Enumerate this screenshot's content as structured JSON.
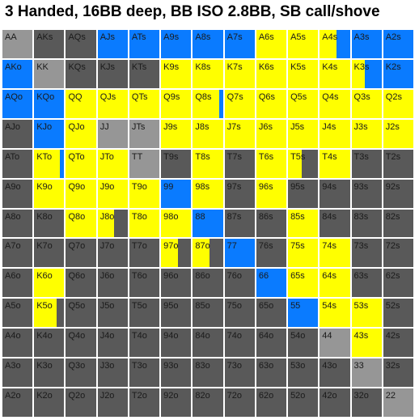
{
  "title": "3 Handed, 16BB deep, BB ISO 2.8BB, SB call/shove",
  "colors": {
    "yellow": "#ffff00",
    "blue": "#0a7bff",
    "dark": "#595959",
    "light": "#969696"
  },
  "grid": {
    "rows": [
      [
        {
          "label": "AA",
          "fill": [
            "light"
          ]
        },
        {
          "label": "AKs",
          "fill": [
            "dark"
          ]
        },
        {
          "label": "AQs",
          "fill": [
            "dark"
          ]
        },
        {
          "label": "AJs",
          "fill": [
            "blue"
          ]
        },
        {
          "label": "ATs",
          "fill": [
            "blue"
          ]
        },
        {
          "label": "A9s",
          "fill": [
            "blue"
          ]
        },
        {
          "label": "A8s",
          "fill": [
            "blue"
          ]
        },
        {
          "label": "A7s",
          "fill": [
            "blue"
          ]
        },
        {
          "label": "A6s",
          "fill": [
            "yellow"
          ]
        },
        {
          "label": "A5s",
          "fill": [
            "yellow"
          ]
        },
        {
          "label": "A4s",
          "fill": [
            "yellow",
            "blue"
          ],
          "split": [
            0.55,
            0.45
          ]
        },
        {
          "label": "A3s",
          "fill": [
            "blue"
          ]
        },
        {
          "label": "A2s",
          "fill": [
            "blue"
          ]
        }
      ],
      [
        {
          "label": "AKo",
          "fill": [
            "blue"
          ]
        },
        {
          "label": "KK",
          "fill": [
            "light"
          ]
        },
        {
          "label": "KQs",
          "fill": [
            "dark"
          ]
        },
        {
          "label": "KJs",
          "fill": [
            "dark"
          ]
        },
        {
          "label": "KTs",
          "fill": [
            "dark"
          ]
        },
        {
          "label": "K9s",
          "fill": [
            "yellow"
          ]
        },
        {
          "label": "K8s",
          "fill": [
            "yellow"
          ]
        },
        {
          "label": "K7s",
          "fill": [
            "yellow"
          ]
        },
        {
          "label": "K6s",
          "fill": [
            "yellow"
          ]
        },
        {
          "label": "K5s",
          "fill": [
            "yellow"
          ]
        },
        {
          "label": "K4s",
          "fill": [
            "yellow"
          ]
        },
        {
          "label": "K3s",
          "fill": [
            "yellow",
            "blue"
          ],
          "split": [
            0.45,
            0.55
          ]
        },
        {
          "label": "K2s",
          "fill": [
            "blue"
          ]
        }
      ],
      [
        {
          "label": "AQo",
          "fill": [
            "blue"
          ]
        },
        {
          "label": "KQo",
          "fill": [
            "blue"
          ]
        },
        {
          "label": "QQ",
          "fill": [
            "yellow"
          ]
        },
        {
          "label": "QJs",
          "fill": [
            "yellow"
          ]
        },
        {
          "label": "QTs",
          "fill": [
            "yellow"
          ]
        },
        {
          "label": "Q9s",
          "fill": [
            "yellow"
          ]
        },
        {
          "label": "Q8s",
          "fill": [
            "yellow",
            "blue"
          ],
          "split": [
            0.88,
            0.12
          ]
        },
        {
          "label": "Q7s",
          "fill": [
            "yellow"
          ]
        },
        {
          "label": "Q6s",
          "fill": [
            "yellow"
          ]
        },
        {
          "label": "Q5s",
          "fill": [
            "yellow"
          ]
        },
        {
          "label": "Q4s",
          "fill": [
            "yellow"
          ]
        },
        {
          "label": "Q3s",
          "fill": [
            "yellow"
          ]
        },
        {
          "label": "Q2s",
          "fill": [
            "yellow"
          ]
        }
      ],
      [
        {
          "label": "AJo",
          "fill": [
            "dark"
          ]
        },
        {
          "label": "KJo",
          "fill": [
            "blue"
          ]
        },
        {
          "label": "QJo",
          "fill": [
            "yellow"
          ]
        },
        {
          "label": "JJ",
          "fill": [
            "light"
          ]
        },
        {
          "label": "JTs",
          "fill": [
            "light"
          ]
        },
        {
          "label": "J9s",
          "fill": [
            "yellow"
          ]
        },
        {
          "label": "J8s",
          "fill": [
            "yellow"
          ]
        },
        {
          "label": "J7s",
          "fill": [
            "yellow"
          ]
        },
        {
          "label": "J6s",
          "fill": [
            "yellow"
          ]
        },
        {
          "label": "J5s",
          "fill": [
            "yellow"
          ]
        },
        {
          "label": "J4s",
          "fill": [
            "yellow"
          ]
        },
        {
          "label": "J3s",
          "fill": [
            "yellow"
          ]
        },
        {
          "label": "J2s",
          "fill": [
            "yellow"
          ]
        }
      ],
      [
        {
          "label": "ATo",
          "fill": [
            "dark"
          ]
        },
        {
          "label": "KTo",
          "fill": [
            "yellow",
            "blue"
          ],
          "split": [
            0.85,
            0.15
          ]
        },
        {
          "label": "QTo",
          "fill": [
            "yellow"
          ]
        },
        {
          "label": "JTo",
          "fill": [
            "yellow"
          ]
        },
        {
          "label": "TT",
          "fill": [
            "light"
          ]
        },
        {
          "label": "T9s",
          "fill": [
            "dark"
          ]
        },
        {
          "label": "T8s",
          "fill": [
            "yellow"
          ]
        },
        {
          "label": "T7s",
          "fill": [
            "dark"
          ]
        },
        {
          "label": "T6s",
          "fill": [
            "yellow"
          ]
        },
        {
          "label": "T5s",
          "fill": [
            "yellow",
            "dark"
          ],
          "split": [
            0.45,
            0.55
          ]
        },
        {
          "label": "T4s",
          "fill": [
            "yellow"
          ]
        },
        {
          "label": "T3s",
          "fill": [
            "dark"
          ]
        },
        {
          "label": "T2s",
          "fill": [
            "dark"
          ]
        }
      ],
      [
        {
          "label": "A9o",
          "fill": [
            "dark"
          ]
        },
        {
          "label": "K9o",
          "fill": [
            "yellow"
          ]
        },
        {
          "label": "Q9o",
          "fill": [
            "yellow"
          ]
        },
        {
          "label": "J9o",
          "fill": [
            "yellow"
          ]
        },
        {
          "label": "T9o",
          "fill": [
            "yellow"
          ]
        },
        {
          "label": "99",
          "fill": [
            "blue"
          ]
        },
        {
          "label": "98s",
          "fill": [
            "yellow"
          ]
        },
        {
          "label": "97s",
          "fill": [
            "dark"
          ]
        },
        {
          "label": "96s",
          "fill": [
            "yellow"
          ]
        },
        {
          "label": "95s",
          "fill": [
            "dark"
          ]
        },
        {
          "label": "94s",
          "fill": [
            "dark"
          ]
        },
        {
          "label": "93s",
          "fill": [
            "dark"
          ]
        },
        {
          "label": "92s",
          "fill": [
            "dark"
          ]
        }
      ],
      [
        {
          "label": "A8o",
          "fill": [
            "dark"
          ]
        },
        {
          "label": "K8o",
          "fill": [
            "dark"
          ]
        },
        {
          "label": "Q8o",
          "fill": [
            "yellow"
          ]
        },
        {
          "label": "J8o",
          "fill": [
            "yellow",
            "dark"
          ],
          "split": [
            0.55,
            0.45
          ]
        },
        {
          "label": "T8o",
          "fill": [
            "yellow"
          ]
        },
        {
          "label": "98o",
          "fill": [
            "yellow"
          ]
        },
        {
          "label": "88",
          "fill": [
            "blue"
          ]
        },
        {
          "label": "87s",
          "fill": [
            "dark"
          ]
        },
        {
          "label": "86s",
          "fill": [
            "dark"
          ]
        },
        {
          "label": "85s",
          "fill": [
            "yellow"
          ]
        },
        {
          "label": "84s",
          "fill": [
            "dark"
          ]
        },
        {
          "label": "83s",
          "fill": [
            "dark"
          ]
        },
        {
          "label": "82s",
          "fill": [
            "dark"
          ]
        }
      ],
      [
        {
          "label": "A7o",
          "fill": [
            "dark"
          ]
        },
        {
          "label": "K7o",
          "fill": [
            "dark"
          ]
        },
        {
          "label": "Q7o",
          "fill": [
            "dark"
          ]
        },
        {
          "label": "J7o",
          "fill": [
            "dark"
          ]
        },
        {
          "label": "T7o",
          "fill": [
            "dark"
          ]
        },
        {
          "label": "97o",
          "fill": [
            "yellow",
            "dark"
          ],
          "split": [
            0.55,
            0.45
          ]
        },
        {
          "label": "87o",
          "fill": [
            "yellow",
            "dark"
          ],
          "split": [
            0.55,
            0.45
          ]
        },
        {
          "label": "77",
          "fill": [
            "blue"
          ]
        },
        {
          "label": "76s",
          "fill": [
            "dark"
          ]
        },
        {
          "label": "75s",
          "fill": [
            "yellow"
          ]
        },
        {
          "label": "74s",
          "fill": [
            "yellow"
          ]
        },
        {
          "label": "73s",
          "fill": [
            "dark"
          ]
        },
        {
          "label": "72s",
          "fill": [
            "dark"
          ]
        }
      ],
      [
        {
          "label": "A6o",
          "fill": [
            "dark"
          ]
        },
        {
          "label": "K6o",
          "fill": [
            "yellow"
          ]
        },
        {
          "label": "Q6o",
          "fill": [
            "dark"
          ]
        },
        {
          "label": "J6o",
          "fill": [
            "dark"
          ]
        },
        {
          "label": "T6o",
          "fill": [
            "dark"
          ]
        },
        {
          "label": "96o",
          "fill": [
            "dark"
          ]
        },
        {
          "label": "86o",
          "fill": [
            "dark"
          ]
        },
        {
          "label": "76o",
          "fill": [
            "dark"
          ]
        },
        {
          "label": "66",
          "fill": [
            "blue"
          ]
        },
        {
          "label": "65s",
          "fill": [
            "yellow"
          ]
        },
        {
          "label": "64s",
          "fill": [
            "yellow"
          ]
        },
        {
          "label": "63s",
          "fill": [
            "dark"
          ]
        },
        {
          "label": "62s",
          "fill": [
            "dark"
          ]
        }
      ],
      [
        {
          "label": "A5o",
          "fill": [
            "dark"
          ]
        },
        {
          "label": "K5o",
          "fill": [
            "yellow",
            "dark"
          ],
          "split": [
            0.75,
            0.25
          ]
        },
        {
          "label": "Q5o",
          "fill": [
            "dark"
          ]
        },
        {
          "label": "J5o",
          "fill": [
            "dark"
          ]
        },
        {
          "label": "T5o",
          "fill": [
            "dark"
          ]
        },
        {
          "label": "95o",
          "fill": [
            "dark"
          ]
        },
        {
          "label": "85o",
          "fill": [
            "dark"
          ]
        },
        {
          "label": "75o",
          "fill": [
            "dark"
          ]
        },
        {
          "label": "65o",
          "fill": [
            "dark"
          ]
        },
        {
          "label": "55",
          "fill": [
            "blue"
          ]
        },
        {
          "label": "54s",
          "fill": [
            "yellow"
          ]
        },
        {
          "label": "53s",
          "fill": [
            "yellow"
          ]
        },
        {
          "label": "52s",
          "fill": [
            "dark"
          ]
        }
      ],
      [
        {
          "label": "A4o",
          "fill": [
            "dark"
          ]
        },
        {
          "label": "K4o",
          "fill": [
            "dark"
          ]
        },
        {
          "label": "Q4o",
          "fill": [
            "dark"
          ]
        },
        {
          "label": "J4o",
          "fill": [
            "dark"
          ]
        },
        {
          "label": "T4o",
          "fill": [
            "dark"
          ]
        },
        {
          "label": "94o",
          "fill": [
            "dark"
          ]
        },
        {
          "label": "84o",
          "fill": [
            "dark"
          ]
        },
        {
          "label": "74o",
          "fill": [
            "dark"
          ]
        },
        {
          "label": "64o",
          "fill": [
            "dark"
          ]
        },
        {
          "label": "54o",
          "fill": [
            "dark"
          ]
        },
        {
          "label": "44",
          "fill": [
            "light"
          ]
        },
        {
          "label": "43s",
          "fill": [
            "yellow"
          ]
        },
        {
          "label": "42s",
          "fill": [
            "dark"
          ]
        }
      ],
      [
        {
          "label": "A3o",
          "fill": [
            "dark"
          ]
        },
        {
          "label": "K3o",
          "fill": [
            "dark"
          ]
        },
        {
          "label": "Q3o",
          "fill": [
            "dark"
          ]
        },
        {
          "label": "J3o",
          "fill": [
            "dark"
          ]
        },
        {
          "label": "T3o",
          "fill": [
            "dark"
          ]
        },
        {
          "label": "93o",
          "fill": [
            "dark"
          ]
        },
        {
          "label": "83o",
          "fill": [
            "dark"
          ]
        },
        {
          "label": "73o",
          "fill": [
            "dark"
          ]
        },
        {
          "label": "63o",
          "fill": [
            "dark"
          ]
        },
        {
          "label": "53o",
          "fill": [
            "dark"
          ]
        },
        {
          "label": "43o",
          "fill": [
            "dark"
          ]
        },
        {
          "label": "33",
          "fill": [
            "light"
          ]
        },
        {
          "label": "32s",
          "fill": [
            "dark"
          ]
        }
      ],
      [
        {
          "label": "A2o",
          "fill": [
            "dark"
          ]
        },
        {
          "label": "K2o",
          "fill": [
            "dark"
          ]
        },
        {
          "label": "Q2o",
          "fill": [
            "dark"
          ]
        },
        {
          "label": "J2o",
          "fill": [
            "dark"
          ]
        },
        {
          "label": "T2o",
          "fill": [
            "dark"
          ]
        },
        {
          "label": "92o",
          "fill": [
            "dark"
          ]
        },
        {
          "label": "82o",
          "fill": [
            "dark"
          ]
        },
        {
          "label": "72o",
          "fill": [
            "dark"
          ]
        },
        {
          "label": "62o",
          "fill": [
            "dark"
          ]
        },
        {
          "label": "52o",
          "fill": [
            "dark"
          ]
        },
        {
          "label": "42o",
          "fill": [
            "dark"
          ]
        },
        {
          "label": "32o",
          "fill": [
            "dark"
          ]
        },
        {
          "label": "22",
          "fill": [
            "light"
          ]
        }
      ]
    ]
  }
}
